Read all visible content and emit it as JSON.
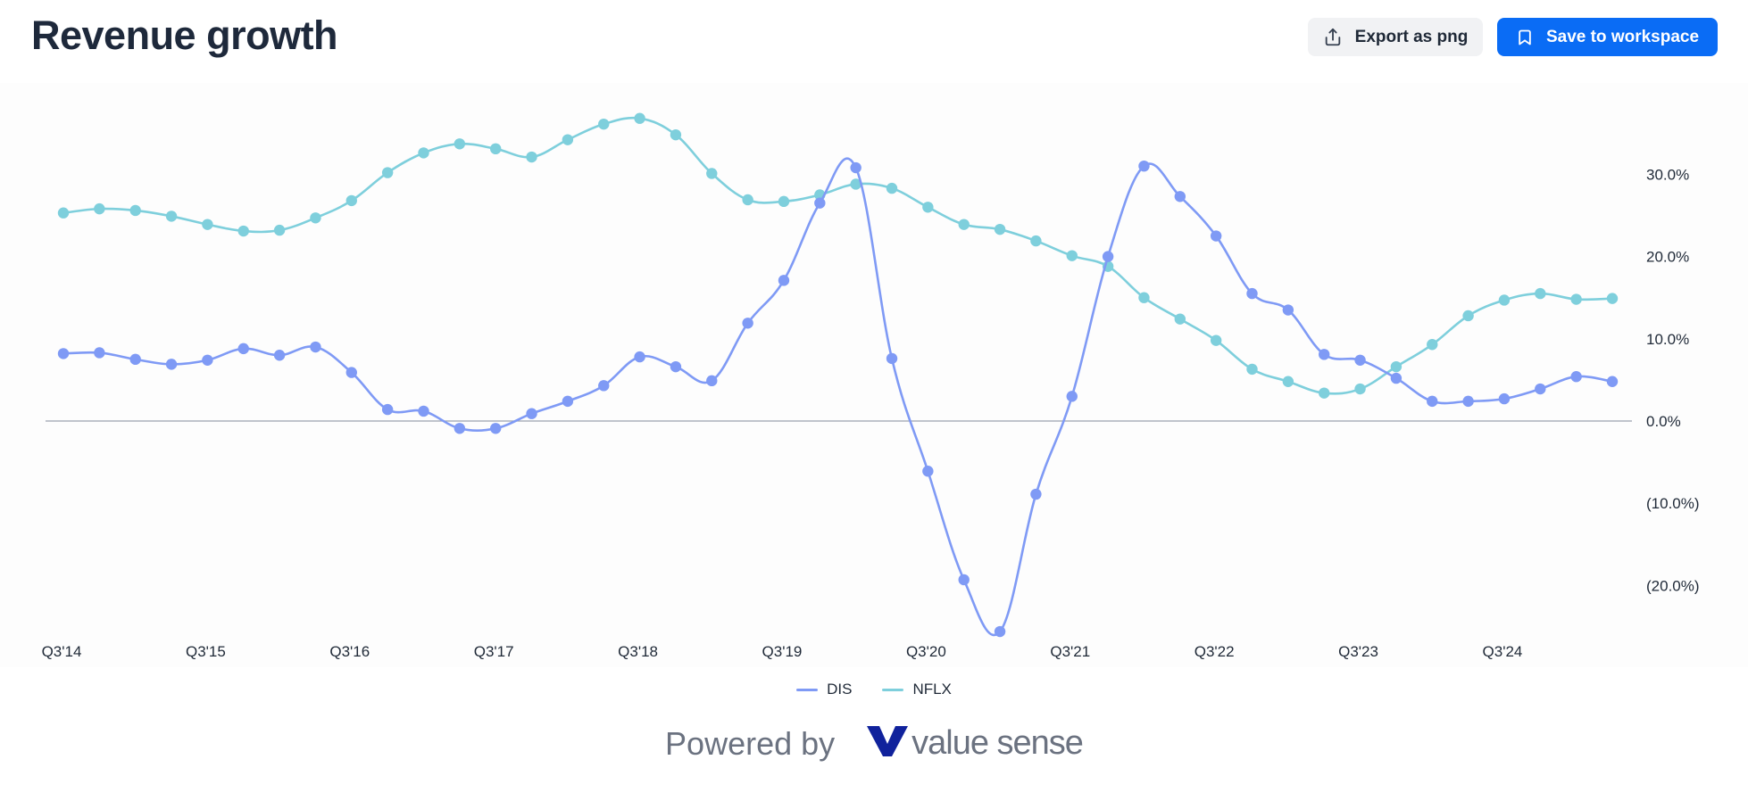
{
  "header": {
    "title": "Revenue growth",
    "export_label": "Export as png",
    "save_label": "Save to workspace"
  },
  "footer": {
    "powered_by": "Powered by",
    "brand": "value sense"
  },
  "colors": {
    "dis": "#7f9af5",
    "nflx": "#7ecfdc",
    "accent": "#0a6cf5",
    "brand": "#10229c"
  },
  "icons": {
    "export": "upload-icon",
    "save": "bookmark-icon",
    "logo": "value-sense-logo-icon"
  },
  "chart_data": {
    "type": "line",
    "title": "Revenue growth",
    "xlabel": "",
    "ylabel": "",
    "x": [
      "Q3'14",
      "Q4'14",
      "Q1'15",
      "Q2'15",
      "Q3'15",
      "Q4'15",
      "Q1'16",
      "Q2'16",
      "Q3'16",
      "Q4'16",
      "Q1'17",
      "Q2'17",
      "Q3'17",
      "Q4'17",
      "Q1'18",
      "Q2'18",
      "Q3'18",
      "Q4'18",
      "Q1'19",
      "Q2'19",
      "Q3'19",
      "Q4'19",
      "Q1'20",
      "Q2'20",
      "Q3'20",
      "Q4'20",
      "Q1'21",
      "Q2'21",
      "Q3'21",
      "Q4'21",
      "Q1'22",
      "Q2'22",
      "Q3'22",
      "Q4'22",
      "Q1'23",
      "Q2'23",
      "Q3'23",
      "Q4'23",
      "Q1'24",
      "Q2'24",
      "Q3'24",
      "Q4'24",
      "Q1'25",
      "Q2'25"
    ],
    "x_tick_labels": [
      "Q3'14",
      "Q3'15",
      "Q3'16",
      "Q3'17",
      "Q3'18",
      "Q3'19",
      "Q3'20",
      "Q3'21",
      "Q3'22",
      "Q3'23",
      "Q3'24"
    ],
    "y_ticks": [
      -20,
      -10,
      0,
      10,
      20,
      30
    ],
    "y_tick_labels": [
      "(20.0%)",
      "(10.0%)",
      "0.0%",
      "10.0%",
      "20.0%",
      "30.0%"
    ],
    "ylim": [
      -26,
      37
    ],
    "axis_position": "right",
    "grid": false,
    "legend_position": "bottom",
    "series": [
      {
        "name": "DIS",
        "color": "#7f9af5",
        "values": [
          8.2,
          8.3,
          7.5,
          6.9,
          7.4,
          8.8,
          8.0,
          9.0,
          5.9,
          1.4,
          1.2,
          -0.9,
          -0.9,
          0.9,
          2.4,
          4.3,
          7.8,
          6.6,
          4.9,
          11.9,
          17.1,
          26.5,
          30.8,
          7.6,
          -6.1,
          -19.3,
          -25.6,
          -8.9,
          3.0,
          20.0,
          31.0,
          27.3,
          22.5,
          15.5,
          13.5,
          8.1,
          7.4,
          5.2,
          2.4,
          2.4,
          2.7,
          3.9,
          5.4,
          4.8
        ]
      },
      {
        "name": "NFLX",
        "color": "#7ecfdc",
        "values": [
          25.3,
          25.8,
          25.6,
          24.9,
          23.9,
          23.1,
          23.2,
          24.7,
          26.8,
          30.2,
          32.6,
          33.7,
          33.1,
          32.1,
          34.2,
          36.1,
          36.8,
          34.8,
          30.1,
          26.9,
          26.7,
          27.5,
          28.8,
          28.3,
          26.0,
          23.9,
          23.3,
          21.9,
          20.1,
          18.8,
          15.0,
          12.4,
          9.8,
          6.3,
          4.8,
          3.4,
          3.9,
          6.6,
          9.3,
          12.8,
          14.7,
          15.5,
          14.8,
          14.9
        ]
      }
    ]
  }
}
